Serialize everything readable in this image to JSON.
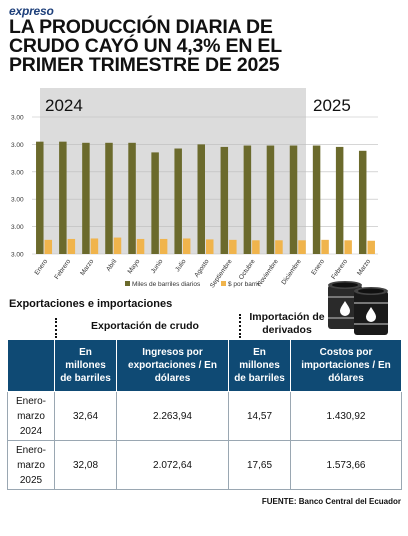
{
  "brand": "expreso",
  "headline": [
    "LA PRODUCCIÓN DIARIA DE",
    "CRUDO CAYÓ UN 4,3% EN EL",
    "PRIMER TRIMESTRE DE 2025"
  ],
  "chart_data": {
    "type": "bar",
    "year_labels": [
      "2024",
      "2025"
    ],
    "categories": [
      "Enero",
      "Febrero",
      "Marzo",
      "Abril",
      "Mayo",
      "Junio",
      "Julio",
      "Agosto",
      "Septiembre",
      "Octubre",
      "Noviembre",
      "Diciembre",
      "Enero",
      "Febrero",
      "Marzo"
    ],
    "y_tick_labels": [
      "3.00",
      "3.00",
      "3.00",
      "3.00",
      "3.00",
      "3.00"
    ],
    "ylim": [
      0,
      6
    ],
    "series": [
      {
        "name": "Miles de barriles diarios",
        "color": "#6b6a2c",
        "values": [
          4.92,
          4.92,
          4.87,
          4.87,
          4.87,
          4.45,
          4.62,
          4.8,
          4.69,
          4.75,
          4.75,
          4.75,
          4.75,
          4.69,
          4.52
        ]
      },
      {
        "name": "$ por barril",
        "color": "#f0b44c",
        "values": [
          0.62,
          0.66,
          0.68,
          0.72,
          0.66,
          0.66,
          0.68,
          0.64,
          0.62,
          0.6,
          0.6,
          0.6,
          0.62,
          0.6,
          0.58
        ]
      }
    ],
    "grid": true,
    "legend_position": "bottom"
  },
  "section_title": "Exportaciones e importaciones",
  "export_subtitle": "Exportación de crudo",
  "import_subtitle": "Importación de derivados",
  "table": {
    "headers": [
      "",
      "En millones de barriles",
      "Ingresos por exportaciones / En dólares",
      "En millones de barriles",
      "Costos por importaciones / En dólares"
    ],
    "rows": [
      [
        "Enero-marzo 2024",
        "32,64",
        "2.263,94",
        "14,57",
        "1.430,92"
      ],
      [
        "Enero-marzo 2025",
        "32,08",
        "2.072,64",
        "17,65",
        "1.573,66"
      ]
    ]
  },
  "source": "FUENTE: Banco Central del Ecuador",
  "colors": {
    "table_header": "#0f4a74",
    "bar_primary": "#6b6a2c",
    "bar_secondary": "#f0b44c",
    "brand": "#1d3f7a"
  }
}
